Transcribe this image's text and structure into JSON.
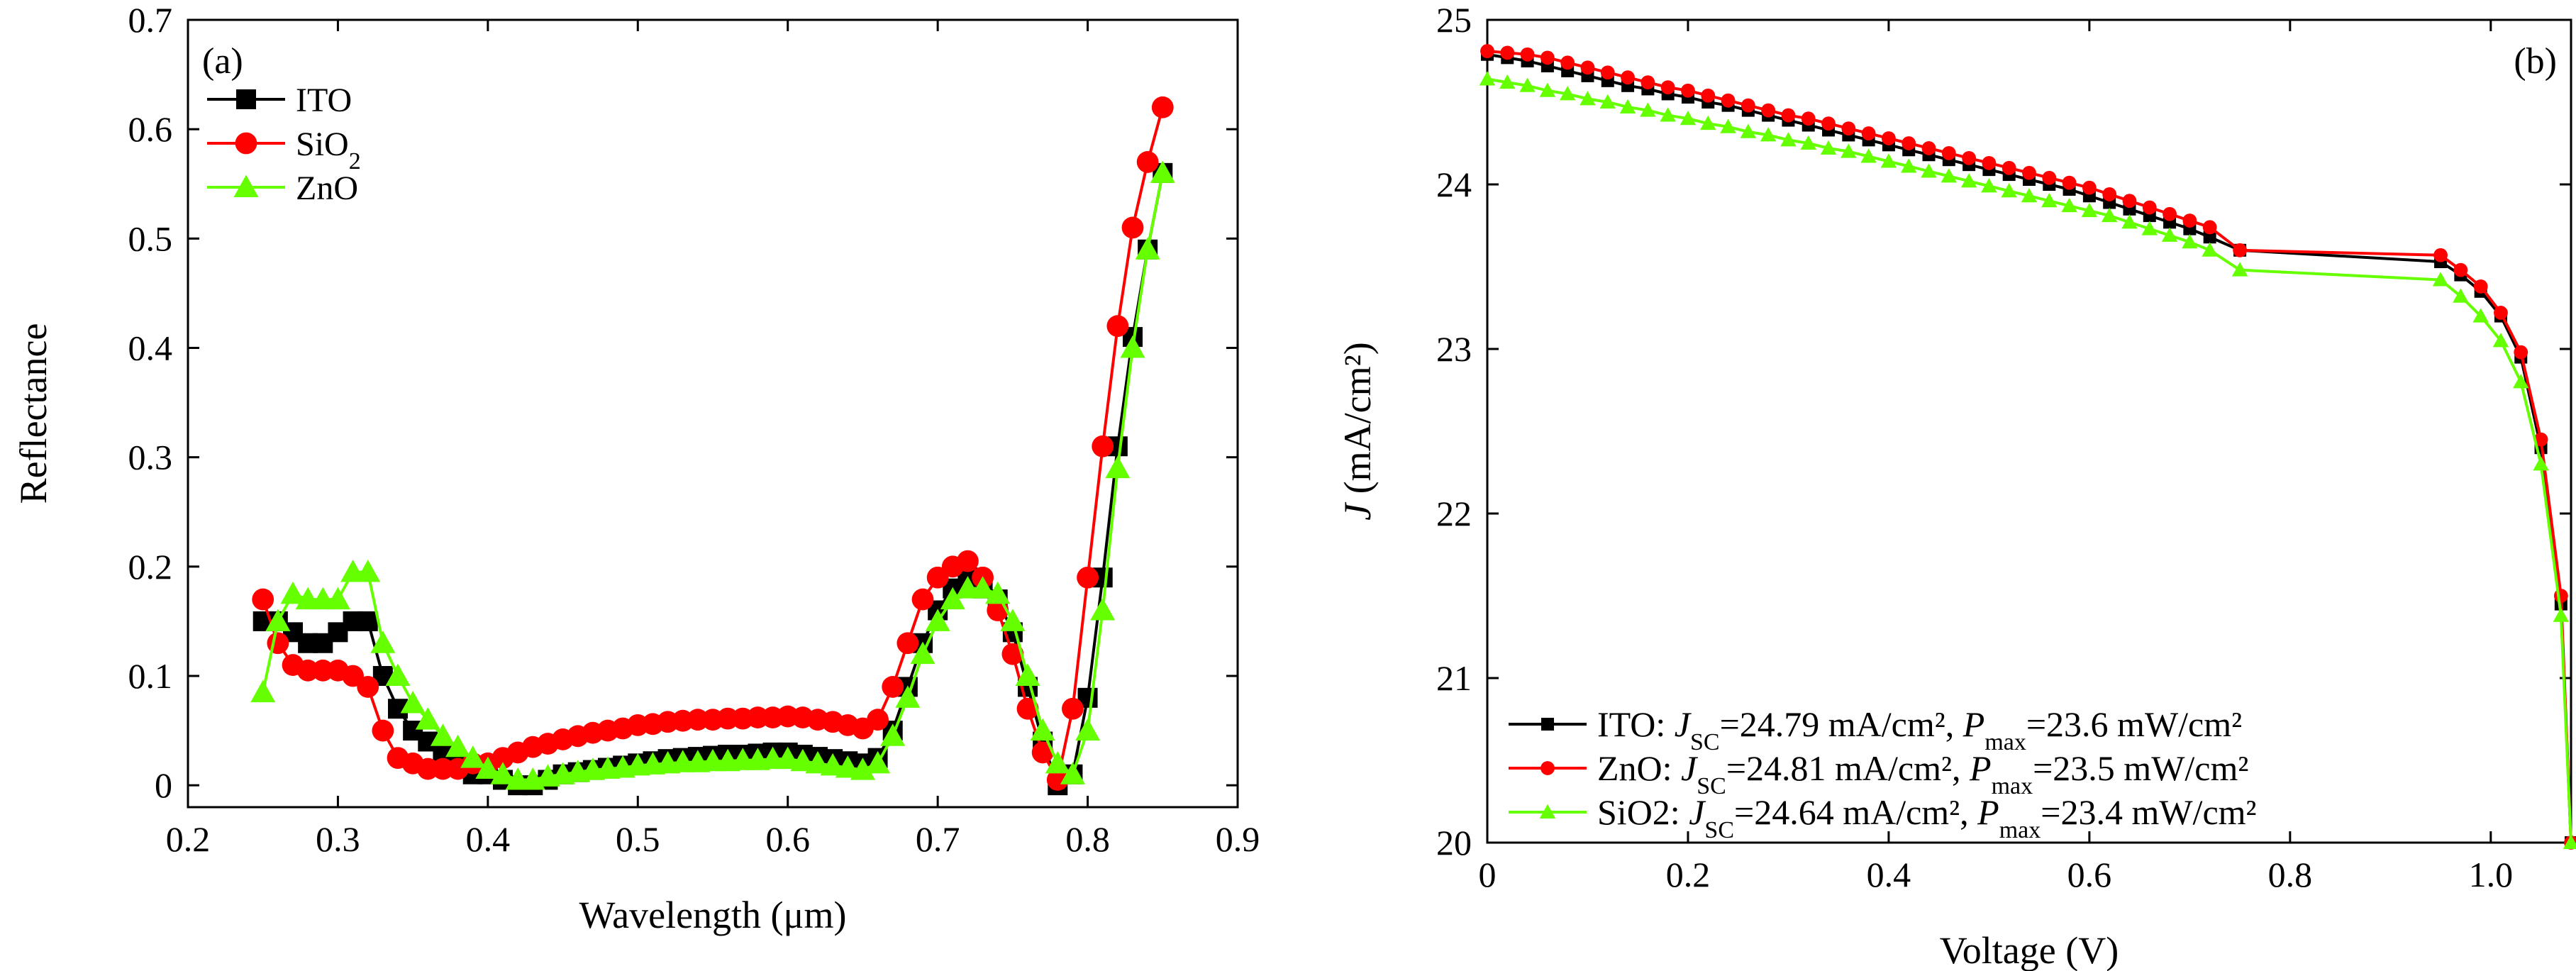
{
  "chart_data": [
    {
      "type": "line",
      "panel": "(a)",
      "xlabel": "Wavelength (μm)",
      "ylabel": "Reflectance",
      "xlim": [
        0.2,
        0.9
      ],
      "ylim": [
        -0.02,
        0.7
      ],
      "xticks": [
        "0.2",
        "0.3",
        "0.4",
        "0.5",
        "0.6",
        "0.7",
        "0.8",
        "0.9"
      ],
      "yticks": [
        "0",
        "0.1",
        "0.2",
        "0.3",
        "0.4",
        "0.5",
        "0.6",
        "0.7"
      ],
      "legend_position": "top-left",
      "series": [
        {
          "name": "ITO",
          "name_html": "ITO",
          "color": "#000000",
          "marker": "square",
          "x": [
            0.25,
            0.26,
            0.27,
            0.28,
            0.29,
            0.3,
            0.31,
            0.32,
            0.33,
            0.34,
            0.35,
            0.36,
            0.37,
            0.38,
            0.39,
            0.4,
            0.41,
            0.42,
            0.43,
            0.44,
            0.45,
            0.46,
            0.47,
            0.48,
            0.49,
            0.5,
            0.51,
            0.52,
            0.53,
            0.54,
            0.55,
            0.56,
            0.57,
            0.58,
            0.59,
            0.6,
            0.61,
            0.62,
            0.63,
            0.64,
            0.65,
            0.66,
            0.67,
            0.68,
            0.69,
            0.7,
            0.71,
            0.72,
            0.73,
            0.74,
            0.75,
            0.76,
            0.77,
            0.78,
            0.79,
            0.8,
            0.81,
            0.82,
            0.83,
            0.84,
            0.85
          ],
          "y": [
            0.15,
            0.15,
            0.14,
            0.13,
            0.13,
            0.14,
            0.15,
            0.15,
            0.1,
            0.07,
            0.05,
            0.04,
            0.03,
            0.02,
            0.01,
            0.01,
            0.005,
            0.0,
            0.0,
            0.005,
            0.01,
            0.012,
            0.014,
            0.016,
            0.018,
            0.02,
            0.022,
            0.024,
            0.025,
            0.026,
            0.027,
            0.028,
            0.028,
            0.029,
            0.03,
            0.03,
            0.028,
            0.026,
            0.024,
            0.022,
            0.02,
            0.025,
            0.05,
            0.09,
            0.13,
            0.16,
            0.18,
            0.19,
            0.18,
            0.17,
            0.14,
            0.09,
            0.04,
            0.0,
            0.01,
            0.08,
            0.19,
            0.31,
            0.41,
            0.49,
            0.56
          ]
        },
        {
          "name": "SiO2",
          "name_html": "SiO<tspan baseline-shift=\"sub\" font-size=\"34\">2</tspan>",
          "color": "#ff0000",
          "marker": "circle",
          "x": [
            0.25,
            0.26,
            0.27,
            0.28,
            0.29,
            0.3,
            0.31,
            0.32,
            0.33,
            0.34,
            0.35,
            0.36,
            0.37,
            0.38,
            0.39,
            0.4,
            0.41,
            0.42,
            0.43,
            0.44,
            0.45,
            0.46,
            0.47,
            0.48,
            0.49,
            0.5,
            0.51,
            0.52,
            0.53,
            0.54,
            0.55,
            0.56,
            0.57,
            0.58,
            0.59,
            0.6,
            0.61,
            0.62,
            0.63,
            0.64,
            0.65,
            0.66,
            0.67,
            0.68,
            0.69,
            0.7,
            0.71,
            0.72,
            0.73,
            0.74,
            0.75,
            0.76,
            0.77,
            0.78,
            0.79,
            0.8,
            0.81,
            0.82,
            0.83,
            0.84,
            0.85
          ],
          "y": [
            0.17,
            0.13,
            0.11,
            0.105,
            0.105,
            0.105,
            0.1,
            0.09,
            0.05,
            0.025,
            0.02,
            0.015,
            0.015,
            0.015,
            0.02,
            0.02,
            0.025,
            0.03,
            0.035,
            0.038,
            0.042,
            0.045,
            0.048,
            0.05,
            0.052,
            0.055,
            0.056,
            0.058,
            0.059,
            0.06,
            0.06,
            0.061,
            0.061,
            0.062,
            0.062,
            0.063,
            0.062,
            0.06,
            0.058,
            0.055,
            0.052,
            0.06,
            0.09,
            0.13,
            0.17,
            0.19,
            0.2,
            0.205,
            0.19,
            0.16,
            0.12,
            0.07,
            0.03,
            0.005,
            0.07,
            0.19,
            0.31,
            0.42,
            0.51,
            0.57,
            0.62
          ]
        },
        {
          "name": "ZnO",
          "name_html": "ZnO",
          "color": "#66ff00",
          "marker": "triangle",
          "x": [
            0.25,
            0.26,
            0.27,
            0.28,
            0.29,
            0.3,
            0.31,
            0.32,
            0.33,
            0.34,
            0.35,
            0.36,
            0.37,
            0.38,
            0.39,
            0.4,
            0.41,
            0.42,
            0.43,
            0.44,
            0.45,
            0.46,
            0.47,
            0.48,
            0.49,
            0.5,
            0.51,
            0.52,
            0.53,
            0.54,
            0.55,
            0.56,
            0.57,
            0.58,
            0.59,
            0.6,
            0.61,
            0.62,
            0.63,
            0.64,
            0.65,
            0.66,
            0.67,
            0.68,
            0.69,
            0.7,
            0.71,
            0.72,
            0.73,
            0.74,
            0.75,
            0.76,
            0.77,
            0.78,
            0.79,
            0.8,
            0.81,
            0.82,
            0.83,
            0.84,
            0.85
          ],
          "y": [
            0.085,
            0.15,
            0.175,
            0.17,
            0.17,
            0.17,
            0.195,
            0.195,
            0.13,
            0.1,
            0.075,
            0.06,
            0.045,
            0.035,
            0.025,
            0.015,
            0.01,
            0.005,
            0.005,
            0.008,
            0.01,
            0.012,
            0.014,
            0.015,
            0.016,
            0.018,
            0.019,
            0.02,
            0.021,
            0.021,
            0.022,
            0.022,
            0.023,
            0.023,
            0.024,
            0.024,
            0.022,
            0.02,
            0.018,
            0.016,
            0.014,
            0.02,
            0.045,
            0.08,
            0.12,
            0.15,
            0.17,
            0.18,
            0.18,
            0.175,
            0.15,
            0.1,
            0.05,
            0.02,
            0.01,
            0.05,
            0.16,
            0.29,
            0.4,
            0.49,
            0.56
          ]
        }
      ]
    },
    {
      "type": "line",
      "panel": "(b)",
      "xlabel": "Voltage (V)",
      "ylabel_italic": "J",
      "ylabel": " (mA/cm²)",
      "xlim": [
        0,
        1.08
      ],
      "ylim": [
        20,
        25
      ],
      "xticks": [
        "0",
        "0.2",
        "0.4",
        "0.6",
        "0.8",
        "1.0"
      ],
      "yticks": [
        "20",
        "21",
        "22",
        "23",
        "24",
        "25"
      ],
      "legend_position": "bottom-left",
      "series": [
        {
          "name": "ITO",
          "color": "#000000",
          "marker": "square",
          "legend": {
            "pre": "ITO: ",
            "jsc": "=24.79 mA/cm², ",
            "pmax": "=23.6 mW/cm²"
          },
          "x": [
            0,
            0.02,
            0.04,
            0.06,
            0.08,
            0.1,
            0.12,
            0.14,
            0.16,
            0.18,
            0.2,
            0.22,
            0.24,
            0.26,
            0.28,
            0.3,
            0.32,
            0.34,
            0.36,
            0.38,
            0.4,
            0.42,
            0.44,
            0.46,
            0.48,
            0.5,
            0.52,
            0.54,
            0.56,
            0.58,
            0.6,
            0.62,
            0.64,
            0.66,
            0.68,
            0.7,
            0.72,
            0.75,
            0.95,
            0.97,
            0.99,
            1.01,
            1.03,
            1.05,
            1.07,
            1.08
          ],
          "y": [
            24.79,
            24.77,
            24.75,
            24.72,
            24.69,
            24.66,
            24.63,
            24.6,
            24.58,
            24.55,
            24.53,
            24.5,
            24.48,
            24.45,
            24.42,
            24.39,
            24.36,
            24.33,
            24.3,
            24.27,
            24.24,
            24.21,
            24.18,
            24.15,
            24.12,
            24.09,
            24.06,
            24.03,
            24.0,
            23.97,
            23.93,
            23.89,
            23.85,
            23.81,
            23.77,
            23.73,
            23.68,
            23.6,
            23.53,
            23.45,
            23.35,
            23.2,
            22.95,
            22.4,
            21.45,
            20.0
          ]
        },
        {
          "name": "ZnO",
          "color": "#ff0000",
          "marker": "circle",
          "legend": {
            "pre": "ZnO: ",
            "jsc": "=24.81 mA/cm², ",
            "pmax": "=23.5 mW/cm²"
          },
          "x": [
            0,
            0.02,
            0.04,
            0.06,
            0.08,
            0.1,
            0.12,
            0.14,
            0.16,
            0.18,
            0.2,
            0.22,
            0.24,
            0.26,
            0.28,
            0.3,
            0.32,
            0.34,
            0.36,
            0.38,
            0.4,
            0.42,
            0.44,
            0.46,
            0.48,
            0.5,
            0.52,
            0.54,
            0.56,
            0.58,
            0.6,
            0.62,
            0.64,
            0.66,
            0.68,
            0.7,
            0.72,
            0.75,
            0.95,
            0.97,
            0.99,
            1.01,
            1.03,
            1.05,
            1.07,
            1.08
          ],
          "y": [
            24.81,
            24.8,
            24.79,
            24.77,
            24.74,
            24.71,
            24.68,
            24.65,
            24.62,
            24.59,
            24.57,
            24.54,
            24.51,
            24.48,
            24.45,
            24.42,
            24.4,
            24.37,
            24.34,
            24.31,
            24.28,
            24.25,
            24.22,
            24.19,
            24.16,
            24.13,
            24.1,
            24.07,
            24.04,
            24.01,
            23.98,
            23.94,
            23.9,
            23.86,
            23.82,
            23.78,
            23.74,
            23.6,
            23.57,
            23.48,
            23.38,
            23.22,
            22.98,
            22.45,
            21.5,
            20.0
          ]
        },
        {
          "name": "SiO2",
          "color": "#66ff00",
          "marker": "triangle",
          "legend": {
            "pre": "SiO2: ",
            "jsc": "=24.64 mA/cm², ",
            "pmax": "=23.4 mW/cm²"
          },
          "x": [
            0,
            0.02,
            0.04,
            0.06,
            0.08,
            0.1,
            0.12,
            0.14,
            0.16,
            0.18,
            0.2,
            0.22,
            0.24,
            0.26,
            0.28,
            0.3,
            0.32,
            0.34,
            0.36,
            0.38,
            0.4,
            0.42,
            0.44,
            0.46,
            0.48,
            0.5,
            0.52,
            0.54,
            0.56,
            0.58,
            0.6,
            0.62,
            0.64,
            0.66,
            0.68,
            0.7,
            0.72,
            0.75,
            0.95,
            0.97,
            0.99,
            1.01,
            1.03,
            1.05,
            1.07,
            1.08
          ],
          "y": [
            24.64,
            24.62,
            24.6,
            24.57,
            24.55,
            24.52,
            24.5,
            24.47,
            24.45,
            24.42,
            24.4,
            24.37,
            24.35,
            24.32,
            24.3,
            24.27,
            24.25,
            24.22,
            24.2,
            24.17,
            24.14,
            24.11,
            24.08,
            24.05,
            24.02,
            23.99,
            23.96,
            23.93,
            23.9,
            23.87,
            23.84,
            23.81,
            23.77,
            23.73,
            23.69,
            23.65,
            23.6,
            23.48,
            23.42,
            23.32,
            23.2,
            23.05,
            22.8,
            22.3,
            21.38,
            20.0
          ]
        }
      ]
    }
  ]
}
